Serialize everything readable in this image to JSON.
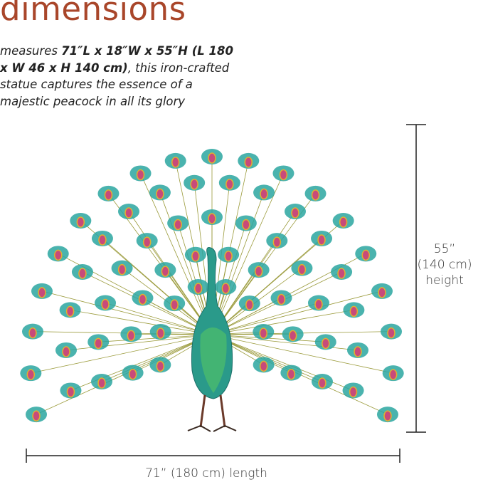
{
  "title": "dimensions",
  "description": {
    "lead": "measures ",
    "bold": "71″L x 18″W x 55″H (L 180 x W 46 x H 140 cm)",
    "rest": ", this iron-crafted statue captures the essence of a majestic peacock in all its glory"
  },
  "height_label": {
    "line1": "55”",
    "line2": "(140 cm)",
    "line3": "height"
  },
  "length_label": "71” (180 cm) length",
  "colors": {
    "title": "#a9462a",
    "feather": "#2aa6a0",
    "eye": "#c84a7a",
    "body": "#2a9a8a",
    "line": "#222222"
  }
}
